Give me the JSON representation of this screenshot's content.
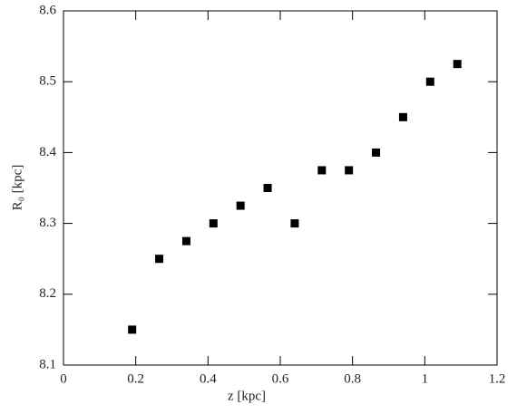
{
  "chart_data": {
    "type": "scatter",
    "x_label": "z [kpc]",
    "y_label": "R₀ [kpc]",
    "x": [
      0.19,
      0.265,
      0.34,
      0.415,
      0.49,
      0.565,
      0.64,
      0.715,
      0.79,
      0.865,
      0.94,
      1.015,
      1.09
    ],
    "values": [
      8.15,
      8.25,
      8.275,
      8.3,
      8.325,
      8.35,
      8.3,
      8.375,
      8.375,
      8.4,
      8.45,
      8.5,
      8.525
    ],
    "color": "#000000",
    "xlim": [
      0,
      1.2
    ],
    "xticks": [
      0,
      0.2,
      0.4,
      0.6,
      0.8,
      1,
      1.2
    ],
    "ylim": [
      8.1,
      8.6
    ],
    "yticks": [
      8.1,
      8.2,
      8.3,
      8.4,
      8.5,
      8.6
    ]
  }
}
